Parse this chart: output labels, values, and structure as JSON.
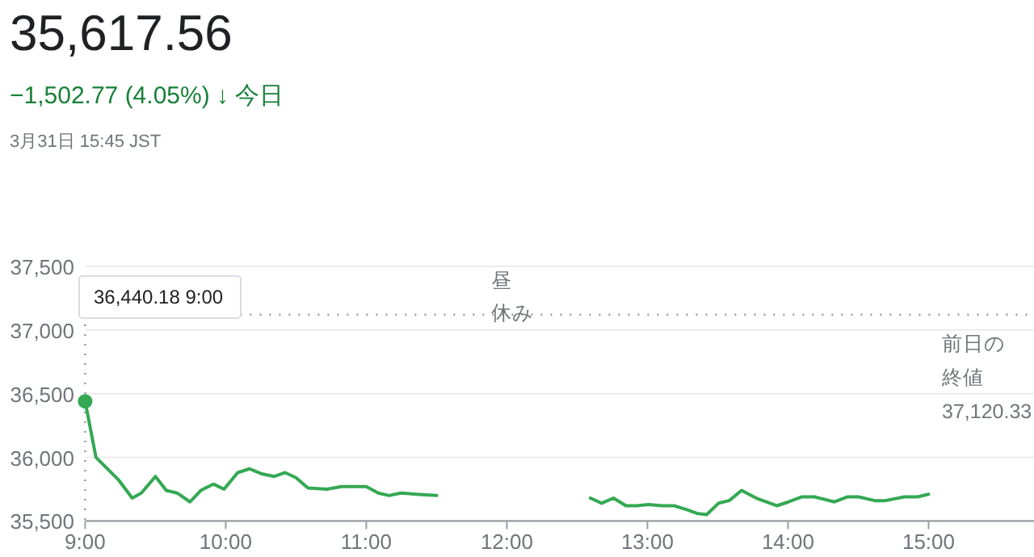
{
  "chart_data": {
    "type": "line",
    "title": "35,617.56",
    "subtitle": "−1,502.77 (4.05%) ↓ 今日",
    "annotations": [
      "3月31日 15:45 JST",
      "36,440.18 9:00",
      "昼",
      "休み"
    ],
    "xlim": [
      9,
      15.75
    ],
    "xticks": [
      {
        "value": 9,
        "label": "9:00"
      },
      {
        "value": 10,
        "label": "10:00"
      },
      {
        "value": 11,
        "label": "11:00"
      },
      {
        "value": 12,
        "label": "12:00"
      },
      {
        "value": 13,
        "label": "13:00"
      },
      {
        "value": 14,
        "label": "14:00"
      },
      {
        "value": 15,
        "label": "15:00"
      }
    ],
    "ylim": [
      35500,
      37500
    ],
    "yticks": [
      {
        "value": 35500,
        "label": "35,500"
      },
      {
        "value": 36000,
        "label": "36,000"
      },
      {
        "value": 36500,
        "label": "36,500"
      },
      {
        "value": 37000,
        "label": "37,000"
      },
      {
        "value": 37500,
        "label": "37,500"
      }
    ],
    "grid": "y",
    "line_style": "solid",
    "marker": "none",
    "ref_lines": [
      {
        "axis": "y",
        "value": 37120.33,
        "label": "前日の終値37,120.33",
        "line_style": "dotted",
        "color": "#9e9e9e"
      },
      {
        "axis": "x",
        "value": 9,
        "line_style": "dotted",
        "color": "#9e9e9e"
      }
    ],
    "series": [
      {
        "color": "#34a853",
        "x": [
          9.0,
          9.077,
          9.24,
          9.335,
          9.4,
          9.5,
          9.577,
          9.654,
          9.746,
          9.823,
          9.912,
          9.988,
          10.085,
          10.169,
          10.258,
          10.346,
          10.423,
          10.5,
          10.585,
          10.72,
          10.823,
          11.0,
          11.085,
          11.162,
          11.246,
          11.354,
          11.5
        ],
        "values": [
          36440,
          36000,
          35820,
          35680,
          35720,
          35850,
          35740,
          35720,
          35650,
          35740,
          35790,
          35750,
          35880,
          35910,
          35870,
          35850,
          35880,
          35840,
          35760,
          35750,
          35770,
          35770,
          35720,
          35700,
          35720,
          35710,
          35700
        ]
      },
      {
        "color": "#34a853",
        "x": [
          12.594,
          12.674,
          12.759,
          12.847,
          12.923,
          13.008,
          13.103,
          13.19,
          13.276,
          13.352,
          13.421,
          13.506,
          13.582,
          13.67,
          13.774,
          13.92,
          14.004,
          14.1,
          14.188,
          14.33,
          14.425,
          14.502,
          14.617,
          14.693,
          14.828,
          14.923,
          15.0
        ],
        "values": [
          35680,
          35640,
          35680,
          35620,
          35620,
          35630,
          35620,
          35620,
          35590,
          35560,
          35550,
          35640,
          35660,
          35740,
          35680,
          35620,
          35650,
          35690,
          35690,
          35650,
          35690,
          35690,
          35660,
          35660,
          35690,
          35690,
          35710
        ]
      }
    ]
  }
}
